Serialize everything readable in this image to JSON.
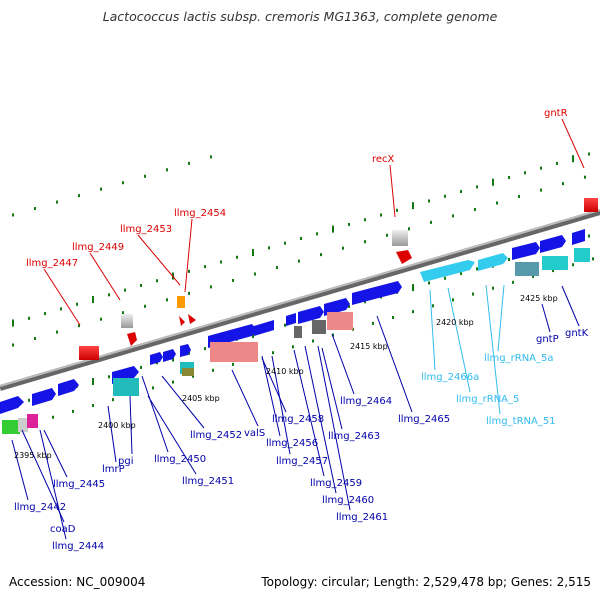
{
  "title": "Lactococcus lactis subsp. cremoris MG1363, complete genome",
  "footer": {
    "accession": "Accession: NC_009004",
    "summary": "Topology: circular; Length: 2,529,478 bp; Genes: 2,515"
  },
  "kbp_labels": [
    "2395 kbp",
    "2400 kbp",
    "2405 kbp",
    "2410 kbp",
    "2415 kbp",
    "2420 kbp",
    "2425 kbp"
  ],
  "gene_labels": {
    "red": [
      "llmg_2447",
      "llmg_2449",
      "llmg_2453",
      "llmg_2454",
      "recX",
      "gntR"
    ],
    "blue": [
      "llmg_2442",
      "coaD",
      "llmg_2444",
      "llmg_2445",
      "lmrP",
      "pgi",
      "llmg_2450",
      "llmg_2451",
      "llmg_2452",
      "valS",
      "llmg_2458",
      "llmg_2456",
      "llmg_2457",
      "llmg_2459",
      "llmg_2460",
      "llmg_2461",
      "llmg_2463",
      "llmg_2464",
      "llmg_2465",
      "gntP",
      "gntK"
    ],
    "cyan": [
      "llmg_2466a",
      "llmg_rRNA_5",
      "llmg_rRNA_5a",
      "llmg_tRNA_51"
    ]
  },
  "colors": {
    "red_label": "#dd0000",
    "blue_label": "#0000aa",
    "cyan_label": "#33bbee",
    "forward_gene": "#1414e6",
    "rna_gene": "#33ccee",
    "salmon_gene": "#ee8888",
    "backbone": "#888888",
    "tick": "#117711"
  }
}
